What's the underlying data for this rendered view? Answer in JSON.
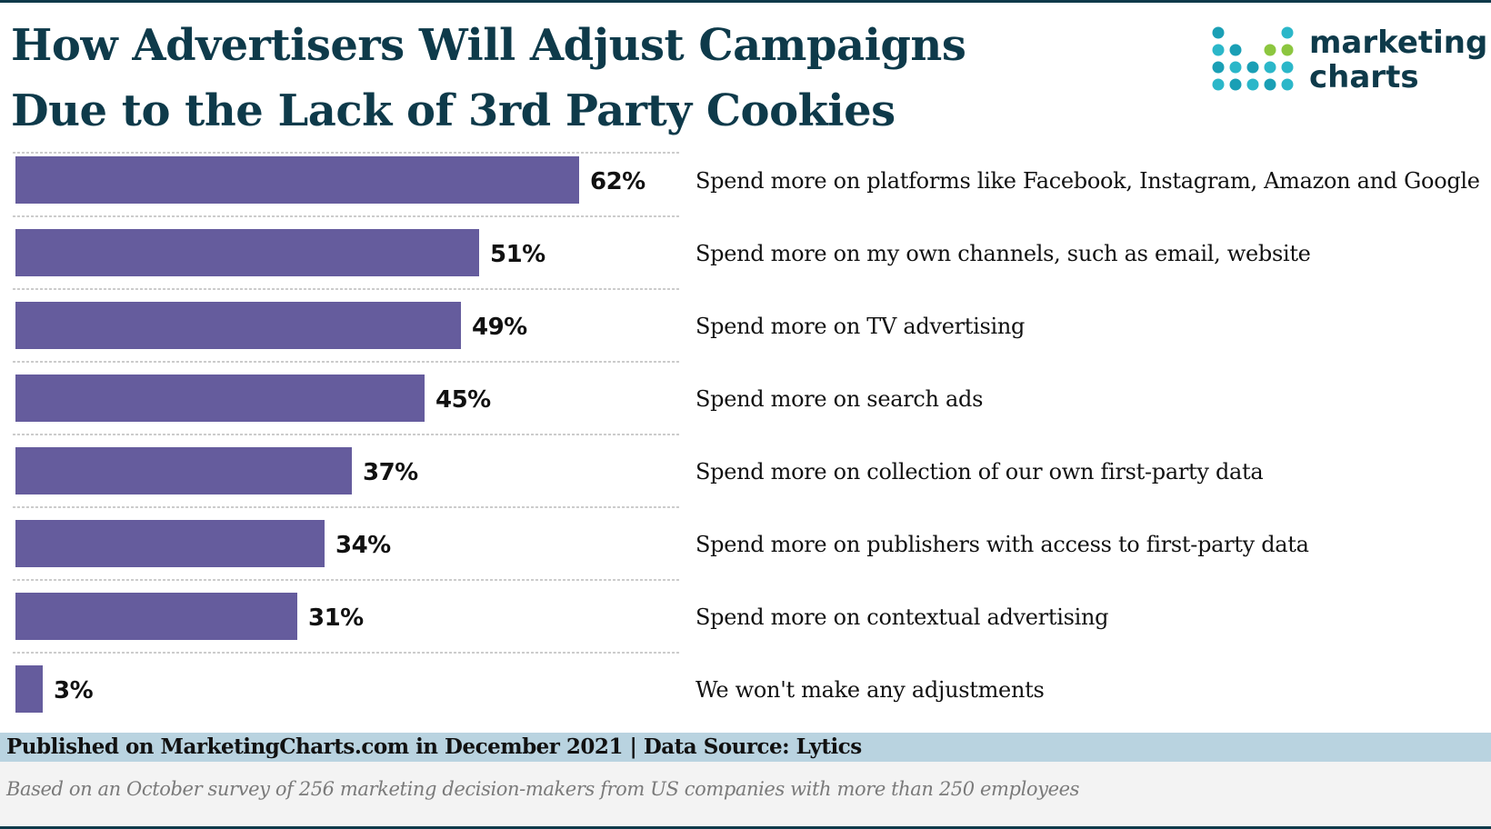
{
  "header": {
    "title": "How Advertisers Will Adjust Campaigns Due to the Lack of 3rd Party Cookies"
  },
  "logo": {
    "line1": "marketing",
    "line2": "charts",
    "dot_colors": [
      "#1a9fb5",
      "#2bb7c9",
      "#8cc63f"
    ]
  },
  "chart_data": {
    "type": "bar",
    "orientation": "horizontal",
    "categories": [
      "Spend more on platforms like Facebook, Instagram, Amazon and Google",
      "Spend more on my own channels, such as email, website",
      "Spend more on TV advertising",
      "Spend more on search ads",
      "Spend more on collection of our own first-party data",
      "Spend more on publishers with access to first-party data",
      "Spend more on contextual advertising",
      "We won't make any adjustments"
    ],
    "values": [
      62,
      51,
      49,
      45,
      37,
      34,
      31,
      3
    ],
    "value_labels": [
      "62%",
      "51%",
      "49%",
      "45%",
      "37%",
      "34%",
      "31%",
      "3%"
    ],
    "xlim": [
      0,
      70
    ],
    "bar_color": "#655c9d",
    "grid": "dashed row separators",
    "legend": "none"
  },
  "footer": {
    "source": "Published on MarketingCharts.com in December 2021 | Data Source: Lytics",
    "note": "Based on an October survey of 256 marketing decision-makers from US companies with more than 250 employees"
  }
}
